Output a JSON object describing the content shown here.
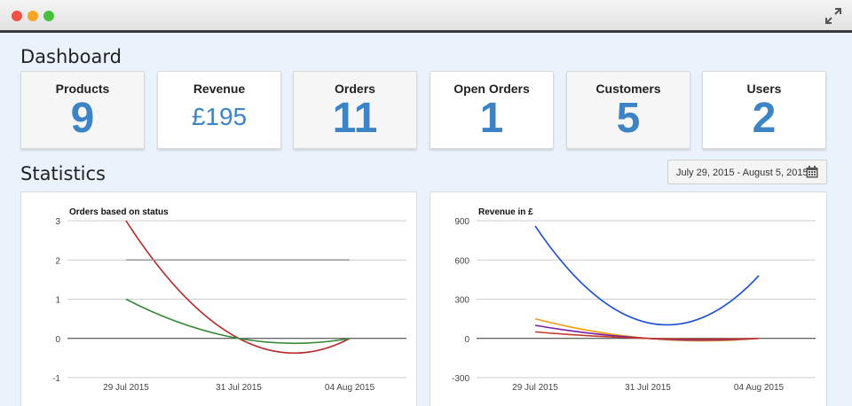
{
  "page_title": "Dashboard",
  "stats": [
    {
      "label": "Products",
      "value": "9"
    },
    {
      "label": "Revenue",
      "value": "£195"
    },
    {
      "label": "Orders",
      "value": "11"
    },
    {
      "label": "Open Orders",
      "value": "1"
    },
    {
      "label": "Customers",
      "value": "5"
    },
    {
      "label": "Users",
      "value": "2"
    }
  ],
  "statistics_title": "Statistics",
  "date_range": "July 29, 2015 - August 5, 2015",
  "icons": [
    "expand-icon",
    "calendar-icon"
  ],
  "colors": {
    "accent": "#3d84c6",
    "red": "#b52a2a",
    "green": "#3a8a3a",
    "gray": "#9a9a9a",
    "blue": "#1a4fd0",
    "orange": "#f39c12",
    "purple": "#7b1fa2",
    "crimson": "#c0392b",
    "magenta": "#9c27b0"
  },
  "chart_data": [
    {
      "type": "line",
      "title": "Orders based on status",
      "x": [
        "29 Jul 2015",
        "31 Jul 2015",
        "04 Aug 2015"
      ],
      "ylim": [
        -1,
        3
      ],
      "yticks": [
        "3",
        "2",
        "1",
        "0",
        "-1"
      ],
      "series": [
        {
          "name": "red",
          "values": [
            3,
            0,
            0
          ]
        },
        {
          "name": "green",
          "values": [
            1,
            0,
            0
          ]
        },
        {
          "name": "gray",
          "values": [
            2,
            2,
            2
          ]
        }
      ]
    },
    {
      "type": "line",
      "title": "Revenue in £",
      "x": [
        "29 Jul 2015",
        "31 Jul 2015",
        "04 Aug 2015"
      ],
      "ylim": [
        -300,
        900
      ],
      "yticks": [
        "900",
        "600",
        "300",
        "0",
        "-300"
      ],
      "series": [
        {
          "name": "blue",
          "values": [
            860,
            120,
            480
          ]
        },
        {
          "name": "orange",
          "values": [
            150,
            0,
            0
          ]
        },
        {
          "name": "purple",
          "values": [
            100,
            0,
            0
          ]
        },
        {
          "name": "crimson",
          "values": [
            50,
            0,
            0
          ]
        }
      ]
    }
  ]
}
